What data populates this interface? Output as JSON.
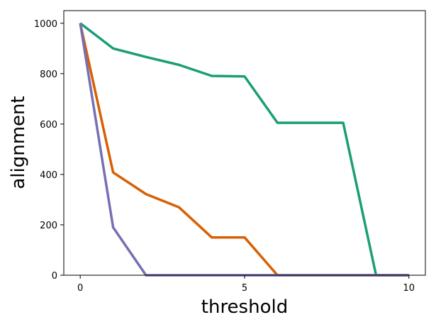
{
  "chart_data": {
    "type": "line",
    "xlabel": "threshold",
    "ylabel": "alignment",
    "xlim": [
      -0.5,
      10.5
    ],
    "ylim": [
      0,
      1050
    ],
    "xticks": [
      0,
      5,
      10
    ],
    "yticks": [
      0,
      200,
      400,
      600,
      800,
      1000
    ],
    "grid": false,
    "x": [
      0,
      1,
      2,
      3,
      4,
      5,
      6,
      7,
      8,
      9,
      10
    ],
    "series": [
      {
        "color": "#1b9e77",
        "values": [
          1000,
          900,
          866,
          835,
          791,
          789,
          605,
          605,
          605,
          0,
          0
        ]
      },
      {
        "color": "#d95f02",
        "values": [
          1000,
          408,
          322,
          270,
          150,
          150,
          0,
          0,
          0,
          0,
          0
        ]
      },
      {
        "color": "#7570b3",
        "values": [
          1000,
          190,
          0,
          0,
          0,
          0,
          0,
          0,
          0,
          0,
          0
        ]
      }
    ]
  }
}
